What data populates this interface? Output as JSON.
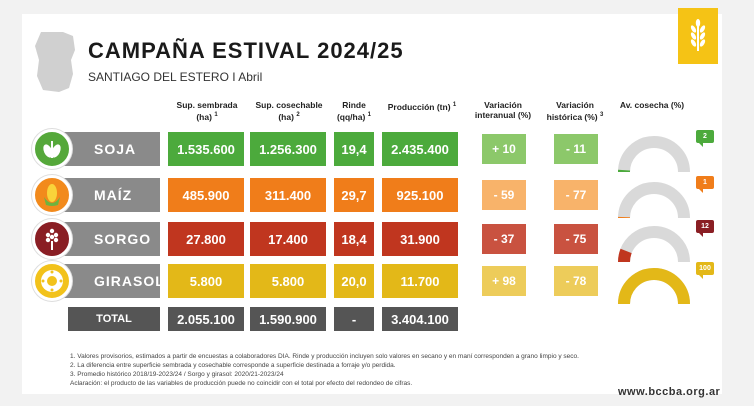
{
  "title": "CAMPAÑA ESTIVAL 2024/25",
  "subtitle": "SANTIAGO DEL ESTERO I Abril",
  "headers": {
    "sup_sembrada": "Sup. sembrada",
    "sup_sembrada_unit": "(ha)",
    "sup_sembrada_note": "1",
    "sup_cosechable": "Sup. cosechable",
    "sup_cosechable_unit": "(ha)",
    "sup_cosechable_note": "2",
    "rinde": "Rinde",
    "rinde_unit": "(qq/ha)",
    "rinde_note": "1",
    "produccion": "Producción (tn)",
    "produccion_note": "1",
    "var_interanual": "Variación",
    "var_interanual_2": "interanual (%)",
    "var_historica": "Variación",
    "var_historica_2": "histórica (%)",
    "var_historica_note": "3",
    "av_cosecha": "Av. cosecha (%)"
  },
  "crops": [
    {
      "name": "SOJA",
      "icon": "soy-icon",
      "sembrada": "1.535.600",
      "cosechable": "1.256.300",
      "rinde": "19,4",
      "produccion": "2.435.400",
      "var_interanual": "+ 10",
      "var_historica": "- 11",
      "avance": 2,
      "avance_label": "2",
      "color_dark": "#4caa3c",
      "color_light": "#8cc86a",
      "icon_bg": "#55a83a"
    },
    {
      "name": "MAÍZ",
      "icon": "corn-icon",
      "sembrada": "485.900",
      "cosechable": "311.400",
      "rinde": "29,7",
      "produccion": "925.100",
      "var_interanual": "- 59",
      "var_historica": "- 77",
      "avance": 1,
      "avance_label": "1",
      "color_dark": "#f07d1a",
      "color_light": "#f8b36a",
      "icon_bg": "#f28a1c"
    },
    {
      "name": "SORGO",
      "icon": "sorghum-icon",
      "sembrada": "27.800",
      "cosechable": "17.400",
      "rinde": "18,4",
      "produccion": "31.900",
      "var_interanual": "- 37",
      "var_historica": "- 75",
      "avance": 12,
      "avance_label": "12",
      "color_dark": "#c0361f",
      "color_light": "#c95240",
      "icon_bg": "#8a1e24"
    },
    {
      "name": "GIRASOL",
      "icon": "sunflower-icon",
      "sembrada": "5.800",
      "cosechable": "5.800",
      "rinde": "20,0",
      "produccion": "11.700",
      "var_interanual": "+ 98",
      "var_historica": "- 78",
      "avance": 100,
      "avance_label": "100",
      "color_dark": "#e3b818",
      "color_light": "#edcc5a",
      "icon_bg": "#f2c21b"
    }
  ],
  "total": {
    "label": "TOTAL",
    "sembrada": "2.055.100",
    "cosechable": "1.590.900",
    "rinde": "-",
    "produccion": "3.404.100"
  },
  "notes": [
    "1. Valores provisorios, estimados a partir de encuestas a colaboradores DIA. Rinde y producción incluyen solo valores en secano y en maní corresponden a grano limpio y seco.",
    "2. La diferencia entre superficie sembrada y cosechable corresponde a superficie destinada a forraje y/o perdida.",
    "3. Promedio histórico 2018/19-2023/24 / Sorgo y girasol: 2020/21-2023/24",
    "Aclaración: el producto de las variables de producción puede no coincidir con el total por efecto del redondeo de cifras."
  ],
  "url": "www.bccba.org.ar"
}
